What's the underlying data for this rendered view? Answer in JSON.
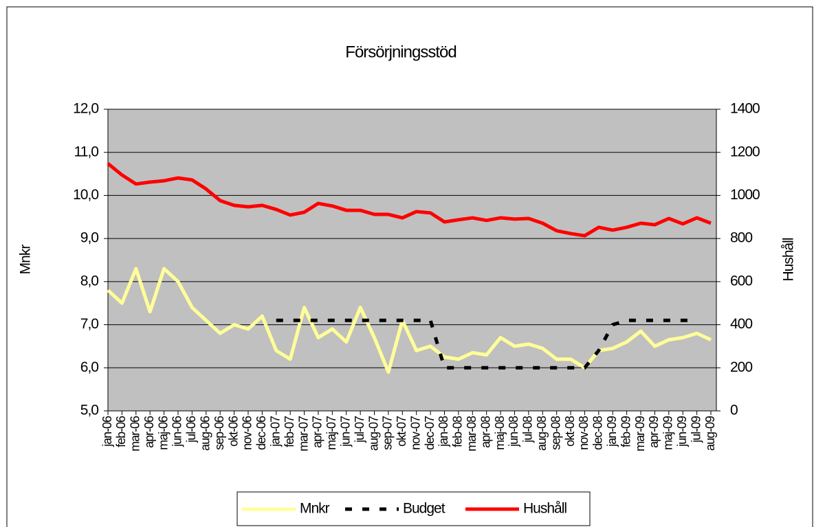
{
  "chart_data": {
    "type": "line",
    "title": "Försörjningsstöd",
    "y_label": "Mnkr",
    "y2_label": "Hushåll",
    "categories": [
      "jan-06",
      "feb-06",
      "mar-06",
      "apr-06",
      "maj-06",
      "jun-06",
      "jul-06",
      "aug-06",
      "sep-06",
      "okt-06",
      "nov-06",
      "dec-06",
      "jan-07",
      "feb-07",
      "mar-07",
      "apr-07",
      "maj-07",
      "jun-07",
      "jul-07",
      "aug-07",
      "sep-07",
      "okt-07",
      "nov-07",
      "dec-07",
      "jan-08",
      "feb-08",
      "mar-08",
      "apr-08",
      "maj-08",
      "jun-08",
      "jul-08",
      "aug-08",
      "sep-08",
      "okt-08",
      "nov-08",
      "dec-08",
      "jan-09",
      "feb-09",
      "mar-09",
      "apr-09",
      "maj-09",
      "jun-09",
      "jul-09",
      "aug-09"
    ],
    "series": [
      {
        "name": "Mnkr",
        "color": "#ffff99",
        "style": "solid",
        "values": [
          7.8,
          7.5,
          8.3,
          7.3,
          8.3,
          8.0,
          7.4,
          7.1,
          6.8,
          7.0,
          6.9,
          7.2,
          6.4,
          6.2,
          7.4,
          6.7,
          6.9,
          6.6,
          7.4,
          6.7,
          5.9,
          7.1,
          6.4,
          6.5,
          6.25,
          6.2,
          6.35,
          6.3,
          6.7,
          6.5,
          6.55,
          6.45,
          6.2,
          6.2,
          6.0,
          6.4,
          6.45,
          6.6,
          6.85,
          6.5,
          6.65,
          6.7,
          6.8,
          6.65
        ]
      },
      {
        "name": "Budget",
        "color": "#000000",
        "style": "dashed",
        "values": [
          null,
          null,
          null,
          null,
          null,
          null,
          null,
          null,
          null,
          null,
          null,
          null,
          7.1,
          7.1,
          7.1,
          7.1,
          7.1,
          7.1,
          7.1,
          7.1,
          7.1,
          7.1,
          7.1,
          7.1,
          6.0,
          6.0,
          6.0,
          6.0,
          6.0,
          6.0,
          6.0,
          6.0,
          6.0,
          6.0,
          6.0,
          6.4,
          7.0,
          7.1,
          7.1,
          7.1,
          7.1,
          7.1,
          7.1,
          null
        ]
      },
      {
        "name": "Hushåll",
        "color": "#ff0000",
        "style": "solid",
        "axis": "y2",
        "values": [
          1148,
          1095,
          1053,
          1062,
          1068,
          1081,
          1072,
          1030,
          976,
          954,
          947,
          954,
          935,
          909,
          922,
          963,
          951,
          931,
          931,
          912,
          912,
          896,
          925,
          919,
          877,
          887,
          896,
          884,
          896,
          890,
          893,
          871,
          836,
          823,
          813,
          852,
          839,
          852,
          871,
          864,
          893,
          868,
          896,
          871
        ]
      }
    ],
    "ylim": [
      5,
      12
    ],
    "yticks": [
      {
        "value": 5,
        "label": "5,0"
      },
      {
        "value": 6,
        "label": "6,0"
      },
      {
        "value": 7,
        "label": "7,0"
      },
      {
        "value": 8,
        "label": "8,0"
      },
      {
        "value": 9,
        "label": "9,0"
      },
      {
        "value": 10,
        "label": "10,0"
      },
      {
        "value": 11,
        "label": "11,0"
      },
      {
        "value": 12,
        "label": "12,0"
      }
    ],
    "y2lim": [
      0,
      1400
    ],
    "y2ticks": [
      0,
      200,
      400,
      600,
      800,
      1000,
      1200,
      1400
    ],
    "grid": true,
    "legend": "bottom",
    "plot_background": "#c0c0c0"
  }
}
